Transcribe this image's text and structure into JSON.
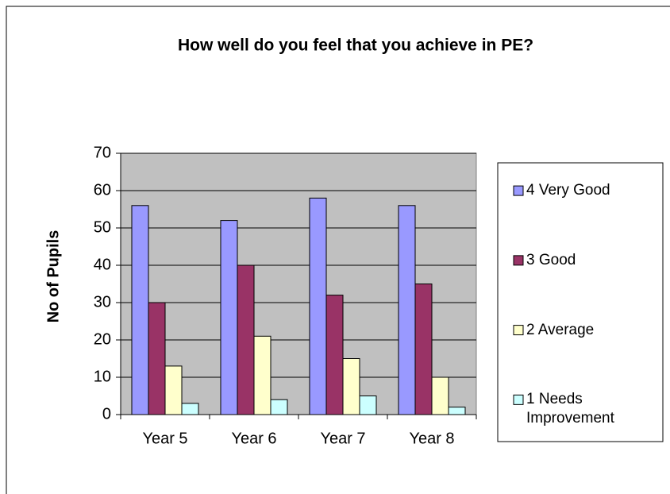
{
  "chart_data": {
    "type": "bar",
    "title": "How well do you feel that you achieve in PE?",
    "y_label": "No of Pupils",
    "categories": [
      "Year 5",
      "Year 6",
      "Year 7",
      "Year 8"
    ],
    "series": [
      {
        "name": "4 Very Good",
        "color": "#9999ff",
        "values": [
          56,
          52,
          58,
          56
        ]
      },
      {
        "name": "3 Good",
        "color": "#993366",
        "values": [
          30,
          40,
          32,
          35
        ]
      },
      {
        "name": "2 Average",
        "color": "#ffffcc",
        "values": [
          13,
          21,
          15,
          10
        ]
      },
      {
        "name": "1 Needs Improvement",
        "color": "#ccffff",
        "values": [
          3,
          4,
          5,
          2
        ]
      }
    ],
    "ylim": [
      0,
      70
    ],
    "yticks": [
      0,
      10,
      20,
      30,
      40,
      50,
      60,
      70
    ],
    "grid": true,
    "legend": "right",
    "plot_background": "#c0c0c0"
  }
}
